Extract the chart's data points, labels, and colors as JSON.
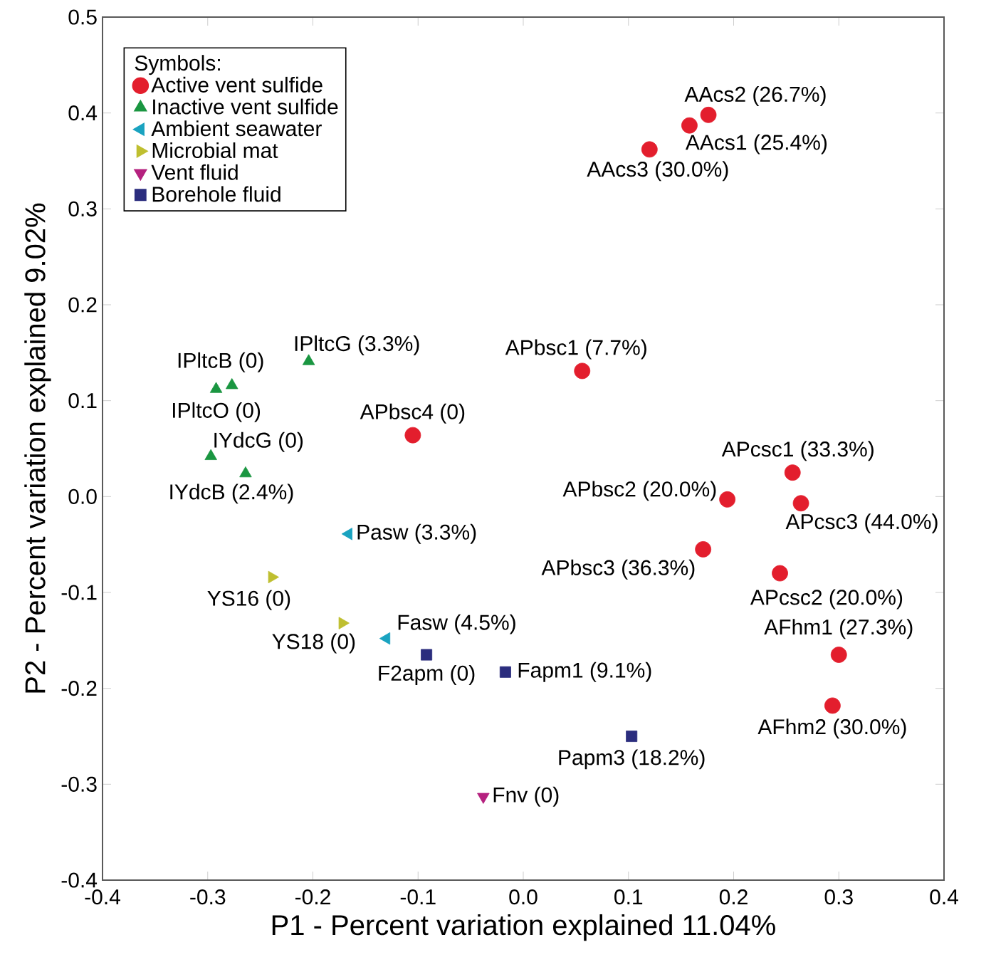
{
  "chart_data": {
    "type": "scatter",
    "xlabel": "P1 - Percent variation explained 11.04%",
    "ylabel": "P2 - Percent variation explained 9.02%",
    "legend_title": "Symbols:",
    "legend": "top left",
    "grid": false,
    "xlim": [
      -0.4,
      0.4
    ],
    "xticks": [
      -0.4,
      -0.3,
      -0.2,
      -0.1,
      {
        "value": 0,
        "label": "0.0"
      },
      0.1,
      0.2,
      0.3,
      0.4
    ],
    "ylim": [
      -0.4,
      0.5
    ],
    "yticks": [
      -0.4,
      -0.3,
      -0.2,
      -0.1,
      {
        "value": 0,
        "label": "0.0"
      },
      0.1,
      0.2,
      0.3,
      0.4,
      0.5
    ],
    "series": [
      {
        "name": "Active vent sulfide",
        "color": "#e31e2d",
        "marker": "circle",
        "x": [
          0.176,
          0.158,
          0.12,
          0.056,
          -0.105,
          0.194,
          0.171,
          0.256,
          0.264,
          0.244,
          0.3,
          0.294
        ],
        "values": [
          0.398,
          0.387,
          0.362,
          0.131,
          0.064,
          -0.003,
          -0.055,
          0.025,
          -0.007,
          -0.08,
          -0.165,
          -0.218
        ]
      },
      {
        "name": "Inactive vent sulfide",
        "color": "#1a9641",
        "marker": "triangle",
        "x": [
          -0.204,
          -0.277,
          -0.292,
          -0.297,
          -0.264
        ],
        "values": [
          0.141,
          0.116,
          0.112,
          0.042,
          0.024
        ]
      },
      {
        "name": "Ambient seawater",
        "color": "#1aa3c0",
        "marker": "triangle",
        "x": [
          -0.166,
          -0.13
        ],
        "values": [
          -0.039,
          -0.148
        ]
      },
      {
        "name": "Microbial mat",
        "color": "#bfbf30",
        "marker": "triangle",
        "x": [
          -0.239,
          -0.172
        ],
        "values": [
          -0.084,
          -0.132
        ]
      },
      {
        "name": "Vent fluid",
        "color": "#b5217f",
        "marker": "triangle",
        "x": [
          -0.038
        ],
        "values": [
          -0.313
        ]
      },
      {
        "name": "Borehole fluid",
        "color": "#2b2d7e",
        "marker": "square",
        "x": [
          -0.092,
          -0.017,
          0.103
        ],
        "values": [
          -0.165,
          -0.183,
          -0.25
        ]
      }
    ],
    "annotations": [
      {
        "text": "AAcs2 (26.7%)",
        "x": 0.176,
        "y": 0.398
      },
      {
        "text": "AAcs1 (25.4%)",
        "x": 0.158,
        "y": 0.387
      },
      {
        "text": "AAcs3 (30.0%)",
        "x": 0.12,
        "y": 0.362
      },
      {
        "text": "APbsc1 (7.7%)",
        "x": 0.056,
        "y": 0.131
      },
      {
        "text": "APbsc4 (0)",
        "x": -0.105,
        "y": 0.064
      },
      {
        "text": "APbsc2 (20.0%)",
        "x": 0.194,
        "y": -0.003
      },
      {
        "text": "APbsc3 (36.3%)",
        "x": 0.171,
        "y": -0.055
      },
      {
        "text": "APcsc1 (33.3%)",
        "x": 0.256,
        "y": 0.025
      },
      {
        "text": "APcsc3 (44.0%)",
        "x": 0.264,
        "y": -0.007
      },
      {
        "text": "APcsc2 (20.0%)",
        "x": 0.244,
        "y": -0.08
      },
      {
        "text": "AFhm1 (27.3%)",
        "x": 0.3,
        "y": -0.165
      },
      {
        "text": "AFhm2 (30.0%)",
        "x": 0.294,
        "y": -0.218
      },
      {
        "text": "IPltcG (3.3%)",
        "x": -0.204,
        "y": 0.141
      },
      {
        "text": "IPltcB (0)",
        "x": -0.277,
        "y": 0.116
      },
      {
        "text": "IPltcO (0)",
        "x": -0.292,
        "y": 0.112
      },
      {
        "text": "IYdcG (0)",
        "x": -0.297,
        "y": 0.042
      },
      {
        "text": "IYdcB (2.4%)",
        "x": -0.264,
        "y": 0.024
      },
      {
        "text": "Pasw (3.3%)",
        "x": -0.166,
        "y": -0.039
      },
      {
        "text": "Fasw (4.5%)",
        "x": -0.13,
        "y": -0.148
      },
      {
        "text": "YS16 (0)",
        "x": -0.239,
        "y": -0.084
      },
      {
        "text": "YS18 (0)",
        "x": -0.172,
        "y": -0.132
      },
      {
        "text": "Fnv (0)",
        "x": -0.038,
        "y": -0.313
      },
      {
        "text": "F2apm (0)",
        "x": -0.092,
        "y": -0.165
      },
      {
        "text": "Fapm1 (9.1%)",
        "x": -0.017,
        "y": -0.183
      },
      {
        "text": "Papm3 (18.2%)",
        "x": 0.103,
        "y": -0.25
      }
    ]
  }
}
